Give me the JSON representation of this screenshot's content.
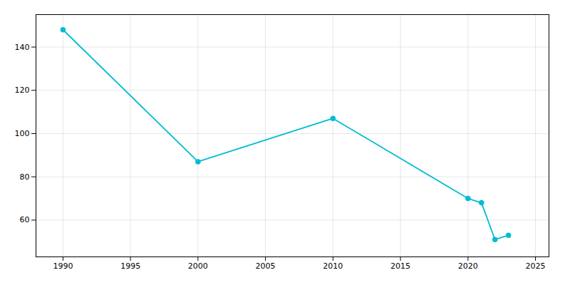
{
  "chart_data": {
    "type": "line",
    "x": [
      1990,
      2000,
      2010,
      2020,
      2021,
      2022,
      2023
    ],
    "values": [
      148,
      87,
      107,
      70,
      68,
      51,
      53
    ],
    "color": "#00BCD4",
    "marker": "circle",
    "xlim": [
      1988,
      2026
    ],
    "ylim": [
      43,
      155
    ],
    "xticks": [
      1990,
      1995,
      2000,
      2005,
      2010,
      2015,
      2020,
      2025
    ],
    "yticks": [
      60,
      80,
      100,
      120,
      140
    ],
    "grid": true
  }
}
